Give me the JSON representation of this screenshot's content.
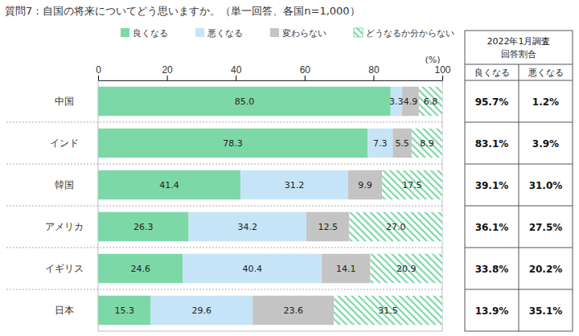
{
  "chart_data": {
    "type": "bar",
    "orientation": "horizontal",
    "stacked": true,
    "data_labels": true,
    "title": "質問7：自国の将来についてどう思いますか。（単一回答、各国n=1,000）",
    "xlabel": "(%)",
    "legend": "top",
    "categories": [
      "中国",
      "インド",
      "韓国",
      "アメリカ",
      "イギリス",
      "日本"
    ],
    "xlim": [
      0,
      100
    ],
    "xticks": [
      0,
      20,
      40,
      60,
      80,
      100
    ],
    "series": [
      {
        "name": "良くなる",
        "color": "#7dd8a7",
        "values": [
          85.0,
          78.3,
          41.4,
          26.3,
          24.6,
          15.3
        ],
        "value_labels": [
          "85.0",
          "78.3",
          "41.4",
          "26.3",
          "24.6",
          "15.3"
        ]
      },
      {
        "name": "悪くなる",
        "color": "#c6e4f7",
        "values": [
          3.3,
          7.3,
          31.2,
          34.2,
          40.4,
          29.6
        ],
        "value_labels": [
          "3.3",
          "7.3",
          "31.2",
          "34.2",
          "40.4",
          "29.6"
        ]
      },
      {
        "name": "変わらない",
        "color": "#c4c4c4",
        "values": [
          4.9,
          5.5,
          9.9,
          12.5,
          14.1,
          23.6
        ],
        "value_labels": [
          "4.9",
          "5.5",
          "9.9",
          "12.5",
          "14.1",
          "23.6"
        ]
      },
      {
        "name": "どうなるか分からない",
        "color": "#7dd8a7",
        "values": [
          6.8,
          8.9,
          17.5,
          27.0,
          20.9,
          31.5
        ],
        "value_labels": [
          "6.8",
          "8.9",
          "17.5",
          "27.0",
          "20.9",
          "31.5"
        ]
      }
    ]
  },
  "table": {
    "title": [
      "2022年1月調査",
      "回答割合"
    ],
    "columns": [
      "良くなる",
      "悪くなる"
    ],
    "rows": [
      [
        "95.7%",
        "1.2%"
      ],
      [
        "83.1%",
        "3.9%"
      ],
      [
        "39.1%",
        "31.0%"
      ],
      [
        "36.1%",
        "27.5%"
      ],
      [
        "33.8%",
        "20.2%"
      ],
      [
        "13.9%",
        "35.1%"
      ]
    ]
  }
}
